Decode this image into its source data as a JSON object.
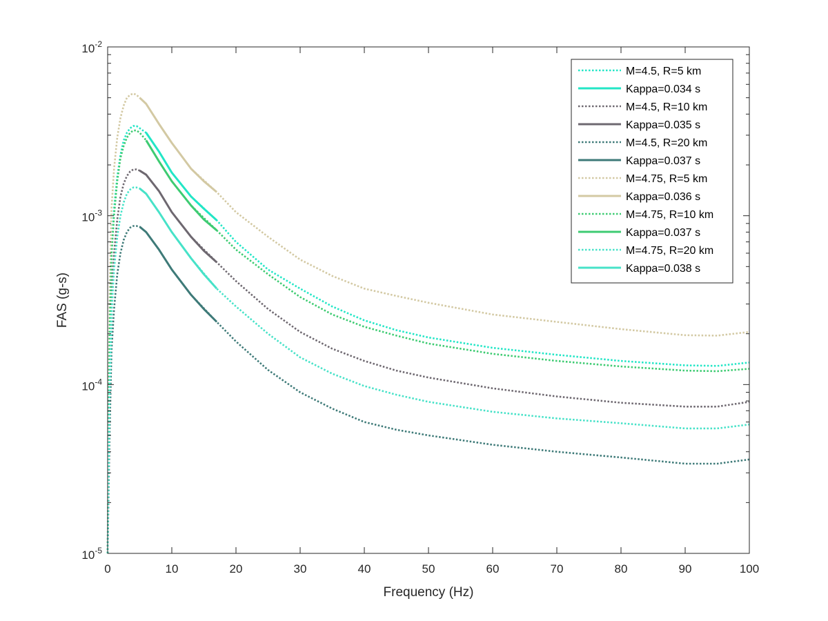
{
  "chart_data": {
    "type": "line",
    "title": "",
    "xlabel": "Frequency (Hz)",
    "ylabel": "FAS (g-s)",
    "xscale": "linear",
    "yscale": "log",
    "xlim": [
      0,
      100
    ],
    "ylim": [
      1e-05,
      0.01
    ],
    "x_ticks": [
      0,
      10,
      20,
      30,
      40,
      50,
      60,
      70,
      80,
      90,
      100
    ],
    "x_tick_labels": [
      "0",
      "10",
      "20",
      "30",
      "40",
      "50",
      "60",
      "70",
      "80",
      "90",
      "100"
    ],
    "y_ticks": [
      {
        "value": 0.01,
        "base": "10",
        "exp": "-2"
      },
      {
        "value": 0.001,
        "base": "10",
        "exp": "-3"
      },
      {
        "value": 0.0001,
        "base": "10",
        "exp": "-4"
      },
      {
        "value": 1e-05,
        "base": "10",
        "exp": "-5"
      }
    ],
    "legend_position": "top-right",
    "grid": false,
    "series": [
      {
        "name": "M=4.5, R=5 km",
        "style": "dotted",
        "color": "#22e6c6",
        "x": [
          0,
          0.3,
          0.6,
          1,
          1.5,
          2,
          2.5,
          3,
          3.5,
          4,
          4.5,
          5,
          6,
          8,
          10,
          13,
          17,
          20,
          25,
          30,
          35,
          40,
          45,
          50,
          60,
          70,
          80,
          90,
          95,
          100
        ],
        "y": [
          1e-05,
          0.0002,
          0.0006,
          0.0011,
          0.0017,
          0.0023,
          0.0028,
          0.0031,
          0.0033,
          0.0034,
          0.0034,
          0.0033,
          0.0031,
          0.0024,
          0.0018,
          0.0013,
          0.00094,
          0.0007,
          0.00048,
          0.00037,
          0.00029,
          0.00024,
          0.00021,
          0.00019,
          0.000165,
          0.00015,
          0.000138,
          0.00013,
          0.000129,
          0.000135
        ]
      },
      {
        "name": "Kappa=0.034 s",
        "style": "solid",
        "color": "#22e6c6",
        "x": [
          6,
          8,
          10,
          13,
          15,
          17
        ],
        "y": [
          0.0031,
          0.0024,
          0.0018,
          0.0013,
          0.0011,
          0.00094
        ]
      },
      {
        "name": "M=4.5, R=10 km",
        "style": "dotted",
        "color": "#6e6870",
        "x": [
          0,
          0.3,
          0.6,
          1,
          1.5,
          2,
          2.5,
          3,
          3.5,
          4,
          4.5,
          5,
          6,
          8,
          10,
          13,
          17,
          20,
          25,
          30,
          35,
          40,
          45,
          50,
          60,
          70,
          80,
          90,
          95,
          100
        ],
        "y": [
          1e-05,
          0.00011,
          0.00034,
          0.0006,
          0.00095,
          0.0013,
          0.00155,
          0.00172,
          0.00183,
          0.00188,
          0.00188,
          0.00185,
          0.00175,
          0.0014,
          0.00105,
          0.00075,
          0.00053,
          0.00041,
          0.00028,
          0.000205,
          0.000163,
          0.000138,
          0.000121,
          0.00011,
          9.5e-05,
          8.5e-05,
          7.8e-05,
          7.4e-05,
          7.4e-05,
          7.9e-05
        ]
      },
      {
        "name": "Kappa=0.035 s",
        "style": "solid",
        "color": "#6e6870",
        "x": [
          5,
          6,
          8,
          10,
          13,
          15,
          17
        ],
        "y": [
          0.00185,
          0.00175,
          0.0014,
          0.00105,
          0.00075,
          0.00062,
          0.00053
        ]
      },
      {
        "name": "M=4.5, R=20 km",
        "style": "dotted",
        "color": "#3e7a78",
        "x": [
          0,
          0.3,
          0.6,
          1,
          1.5,
          2,
          2.5,
          3,
          3.5,
          4,
          4.5,
          5,
          6,
          8,
          10,
          13,
          17,
          20,
          25,
          30,
          35,
          40,
          45,
          50,
          60,
          70,
          80,
          90,
          95,
          100
        ],
        "y": [
          1e-05,
          5e-05,
          0.00016,
          0.00028,
          0.00045,
          0.0006,
          0.00072,
          0.0008,
          0.00085,
          0.00087,
          0.00087,
          0.00086,
          0.0008,
          0.00063,
          0.00048,
          0.00034,
          0.000235,
          0.00018,
          0.000122,
          9e-05,
          7.2e-05,
          6e-05,
          5.4e-05,
          5e-05,
          4.4e-05,
          4e-05,
          3.7e-05,
          3.4e-05,
          3.4e-05,
          3.6e-05
        ]
      },
      {
        "name": "Kappa=0.037 s",
        "style": "solid",
        "color": "#3e7a78",
        "x": [
          5,
          6,
          8,
          10,
          13,
          15,
          17
        ],
        "y": [
          0.00086,
          0.0008,
          0.00063,
          0.00048,
          0.00034,
          0.00028,
          0.000235
        ]
      },
      {
        "name": "M=4.75, R=5 km",
        "style": "dotted",
        "color": "#d3c9a3",
        "x": [
          0,
          0.3,
          0.6,
          1,
          1.5,
          2,
          2.5,
          3,
          3.5,
          4,
          4.5,
          5,
          6,
          8,
          10,
          13,
          17,
          20,
          25,
          30,
          35,
          40,
          45,
          50,
          60,
          70,
          80,
          90,
          95,
          100
        ],
        "y": [
          1e-05,
          0.00035,
          0.0011,
          0.0019,
          0.0029,
          0.0038,
          0.0045,
          0.005,
          0.0052,
          0.0053,
          0.0052,
          0.005,
          0.0046,
          0.0035,
          0.0027,
          0.0019,
          0.00138,
          0.00105,
          0.00075,
          0.00055,
          0.00044,
          0.00037,
          0.000335,
          0.000305,
          0.00026,
          0.000235,
          0.000213,
          0.000196,
          0.000195,
          0.000205
        ]
      },
      {
        "name": "Kappa=0.036 s",
        "style": "solid",
        "color": "#d3c9a3",
        "x": [
          5,
          6,
          8,
          10,
          13,
          15,
          17
        ],
        "y": [
          0.005,
          0.0046,
          0.0035,
          0.0027,
          0.0019,
          0.0016,
          0.00138
        ]
      },
      {
        "name": "M=4.75, R=10 km",
        "style": "dotted",
        "color": "#3ecb72",
        "x": [
          0,
          0.3,
          0.6,
          1,
          1.5,
          2,
          2.5,
          3,
          3.5,
          4,
          4.5,
          5,
          6,
          8,
          10,
          13,
          17,
          20,
          25,
          30,
          35,
          40,
          45,
          50,
          60,
          70,
          80,
          90,
          95,
          100
        ],
        "y": [
          1e-05,
          0.0002,
          0.00058,
          0.001,
          0.0016,
          0.0022,
          0.0026,
          0.0029,
          0.0031,
          0.0032,
          0.0032,
          0.0031,
          0.0028,
          0.0021,
          0.0016,
          0.00115,
          0.00082,
          0.00063,
          0.00045,
          0.00033,
          0.00026,
          0.00022,
          0.000195,
          0.000175,
          0.000152,
          0.000138,
          0.000128,
          0.000121,
          0.00012,
          0.000124
        ]
      },
      {
        "name": "Kappa=0.037 s",
        "style": "solid",
        "color": "#3ecb72",
        "x": [
          6,
          8,
          10,
          13,
          15,
          17
        ],
        "y": [
          0.0028,
          0.0021,
          0.0016,
          0.00115,
          0.00095,
          0.00082
        ]
      },
      {
        "name": "M=4.75, R=20 km",
        "style": "dotted",
        "color": "#47e2c8",
        "x": [
          0,
          0.3,
          0.6,
          1,
          1.5,
          2,
          2.5,
          3,
          3.5,
          4,
          4.5,
          5,
          6,
          8,
          10,
          13,
          17,
          20,
          25,
          30,
          35,
          40,
          45,
          50,
          60,
          70,
          80,
          90,
          95,
          100
        ],
        "y": [
          1e-05,
          9e-05,
          0.00026,
          0.00048,
          0.00075,
          0.001,
          0.0012,
          0.00135,
          0.00143,
          0.00147,
          0.00147,
          0.00145,
          0.00135,
          0.00105,
          0.0008,
          0.00056,
          0.00037,
          0.00029,
          0.0002,
          0.000145,
          0.000116,
          9.8e-05,
          8.7e-05,
          7.9e-05,
          6.9e-05,
          6.3e-05,
          5.9e-05,
          5.5e-05,
          5.5e-05,
          5.8e-05
        ]
      },
      {
        "name": "Kappa=0.038 s",
        "style": "solid",
        "color": "#47e2c8",
        "x": [
          5,
          6,
          8,
          10,
          13,
          15,
          17
        ],
        "y": [
          0.00145,
          0.00135,
          0.00105,
          0.0008,
          0.00056,
          0.00045,
          0.00037
        ]
      }
    ]
  }
}
